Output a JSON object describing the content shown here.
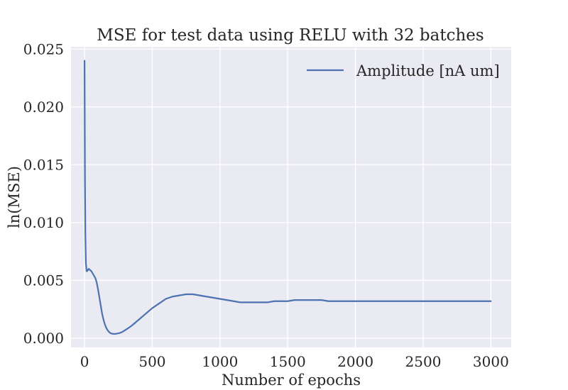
{
  "chart_data": {
    "type": "line",
    "title": "MSE for test data using RELU with 32 batches",
    "xlabel": "Number of epochs",
    "ylabel": "ln(MSE)",
    "xlim": [
      -100,
      3150
    ],
    "ylim": [
      -0.0008,
      0.0252
    ],
    "x_ticks": [
      0,
      500,
      1000,
      1500,
      2000,
      2500,
      3000
    ],
    "x_tick_labels": [
      "0",
      "500",
      "1000",
      "1500",
      "2000",
      "2500",
      "3000"
    ],
    "y_ticks": [
      0.0,
      0.005,
      0.01,
      0.015,
      0.02,
      0.025
    ],
    "y_tick_labels": [
      "0.000",
      "0.005",
      "0.010",
      "0.015",
      "0.020",
      "0.025"
    ],
    "grid": true,
    "legend_position": "top-right",
    "colors": {
      "line": "#4c72b0",
      "plot_bg": "#eaeaf2",
      "grid": "#ffffff",
      "text": "#262626"
    },
    "series": [
      {
        "name": "Amplitude [nA um]",
        "x": [
          0,
          3,
          6,
          10,
          15,
          20,
          30,
          40,
          50,
          60,
          70,
          80,
          90,
          100,
          110,
          120,
          130,
          140,
          150,
          160,
          170,
          180,
          190,
          200,
          210,
          220,
          230,
          240,
          250,
          260,
          280,
          300,
          320,
          350,
          380,
          400,
          450,
          500,
          550,
          600,
          650,
          700,
          750,
          800,
          850,
          900,
          950,
          1000,
          1050,
          1100,
          1150,
          1200,
          1250,
          1300,
          1350,
          1400,
          1450,
          1500,
          1550,
          1600,
          1650,
          1700,
          1750,
          1800,
          1850,
          1900,
          1950,
          2000,
          2050,
          2100,
          2150,
          2200,
          2300,
          2500,
          2700,
          3000
        ],
        "y": [
          0.024,
          0.014,
          0.009,
          0.0065,
          0.0058,
          0.0058,
          0.006,
          0.0059,
          0.0058,
          0.0056,
          0.0054,
          0.0052,
          0.0048,
          0.0042,
          0.0035,
          0.0028,
          0.0021,
          0.0016,
          0.0012,
          0.0009,
          0.0007,
          0.00055,
          0.00045,
          0.0004,
          0.00038,
          0.00037,
          0.00038,
          0.0004,
          0.00042,
          0.00045,
          0.00055,
          0.0007,
          0.00085,
          0.0011,
          0.0014,
          0.0016,
          0.0021,
          0.0026,
          0.003,
          0.0034,
          0.0036,
          0.0037,
          0.0038,
          0.0038,
          0.0037,
          0.0036,
          0.0035,
          0.0034,
          0.0033,
          0.0032,
          0.0031,
          0.0031,
          0.0031,
          0.0031,
          0.0031,
          0.0032,
          0.0032,
          0.0032,
          0.0033,
          0.0033,
          0.0033,
          0.0033,
          0.0033,
          0.0032,
          0.0032,
          0.0032,
          0.0032,
          0.0032,
          0.0032,
          0.0032,
          0.0032,
          0.0032,
          0.0032,
          0.0032,
          0.0032,
          0.0032
        ]
      }
    ]
  }
}
